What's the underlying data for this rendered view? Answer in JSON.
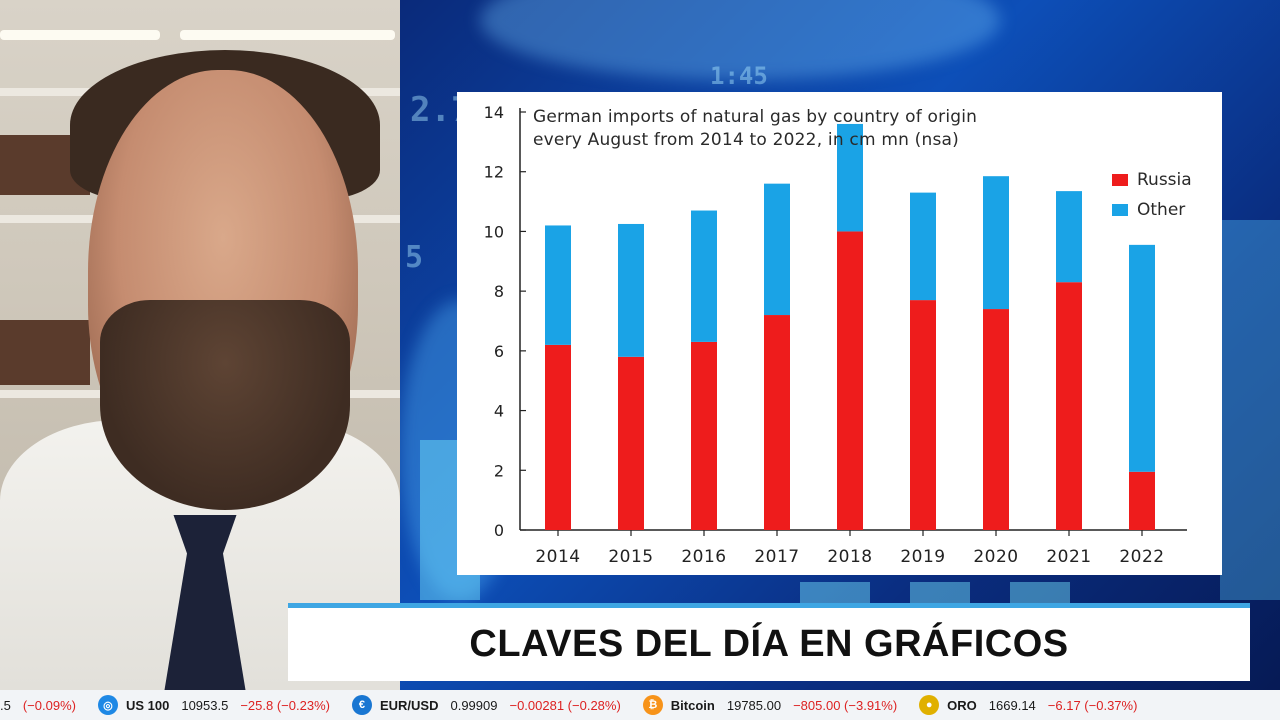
{
  "chart_data": {
    "type": "bar",
    "stacked": true,
    "title": "German imports of natural gas by country of origin\nevery August from 2014 to 2022,  in cm mn (nsa)",
    "categories": [
      "2014",
      "2015",
      "2016",
      "2017",
      "2018",
      "2019",
      "2020",
      "2021",
      "2022"
    ],
    "series": [
      {
        "name": "Russia",
        "color": "#ee1c1c",
        "values": [
          6.2,
          5.8,
          6.3,
          7.2,
          10.0,
          7.7,
          7.4,
          8.3,
          1.95
        ]
      },
      {
        "name": "Other",
        "color": "#1aa3e6",
        "values": [
          4.0,
          4.45,
          4.4,
          4.4,
          3.6,
          3.6,
          4.45,
          3.05,
          7.6
        ]
      }
    ],
    "yticks": [
      "0",
      "2",
      "4",
      "6",
      "8",
      "10",
      "12",
      "14"
    ],
    "ylim": [
      0,
      14
    ],
    "grid": false,
    "legend_position": "right"
  },
  "lower_third": {
    "headline": "CLAVES DEL DÍA EN GRÁFICOS"
  },
  "ticker": [
    {
      "name": "",
      "price": ".5",
      "change": "(−0.09%)",
      "icon": "index-icon",
      "color": "#1565c0",
      "glyph": ""
    },
    {
      "name": "US 100",
      "price": "10953.5",
      "change": "−25.8 (−0.23%)",
      "icon": "us100-icon",
      "color": "#1e88e5",
      "glyph": "◎"
    },
    {
      "name": "EUR/USD",
      "price": "0.99909",
      "change": "−0.00281 (−0.28%)",
      "icon": "currency-icon",
      "color": "#1976d2",
      "glyph": "€"
    },
    {
      "name": "Bitcoin",
      "price": "19785.00",
      "change": "−805.00 (−3.91%)",
      "icon": "bitcoin-icon",
      "color": "#f7931a",
      "glyph": "₿"
    },
    {
      "name": "ORO",
      "price": "1669.14",
      "change": "−6.17 (−0.37%)",
      "icon": "gold-icon",
      "color": "#e0b000",
      "glyph": "●"
    }
  ]
}
